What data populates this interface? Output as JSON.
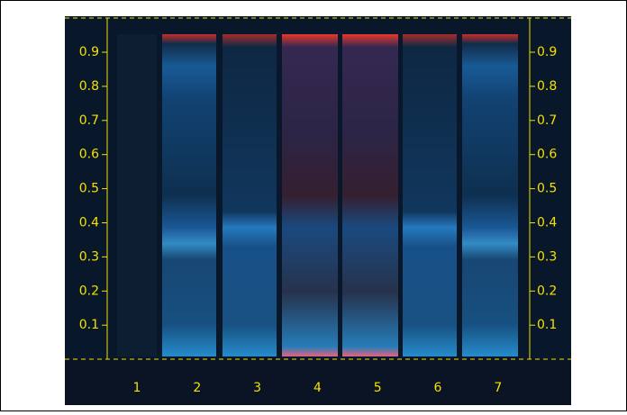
{
  "left_scale": [
    "0.9",
    "0.8",
    "0.7",
    "0.6",
    "0.5",
    "0.4",
    "0.3",
    "0.2",
    "0.1"
  ],
  "right_scale": [
    "0.9",
    "0.8",
    "0.7",
    "0.6",
    "0.5",
    "0.4",
    "0.3",
    "0.2",
    "0.1"
  ],
  "lanes": [
    "1",
    "2",
    "3",
    "4",
    "5",
    "6",
    "7"
  ]
}
